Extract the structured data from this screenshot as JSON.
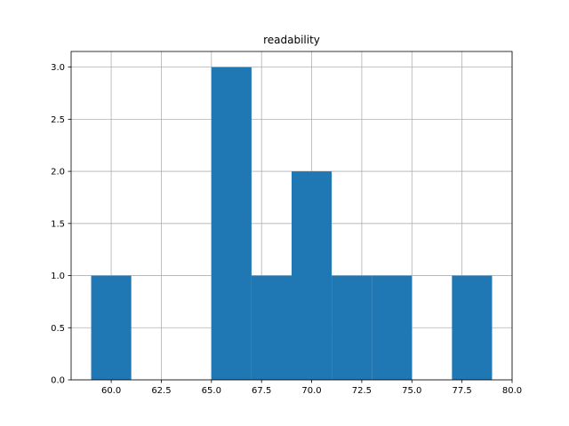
{
  "chart_data": {
    "type": "bar",
    "title": "readability",
    "xlabel": "",
    "ylabel": "",
    "xlim": [
      58.0,
      80.0
    ],
    "ylim": [
      0.0,
      3.15
    ],
    "grid": true,
    "bar_color": "#1f77b4",
    "bins": [
      {
        "x0": 59,
        "x1": 61,
        "count": 1
      },
      {
        "x0": 61,
        "x1": 63,
        "count": 0
      },
      {
        "x0": 63,
        "x1": 65,
        "count": 0
      },
      {
        "x0": 65,
        "x1": 67,
        "count": 3
      },
      {
        "x0": 67,
        "x1": 69,
        "count": 1
      },
      {
        "x0": 69,
        "x1": 71,
        "count": 2
      },
      {
        "x0": 71,
        "x1": 73,
        "count": 1
      },
      {
        "x0": 73,
        "x1": 75,
        "count": 1
      },
      {
        "x0": 75,
        "x1": 77,
        "count": 0
      },
      {
        "x0": 77,
        "x1": 79,
        "count": 1
      }
    ],
    "xticks": [
      60.0,
      62.5,
      65.0,
      67.5,
      70.0,
      72.5,
      75.0,
      77.5,
      80.0
    ],
    "xtick_labels": [
      "60.0",
      "62.5",
      "65.0",
      "67.5",
      "70.0",
      "72.5",
      "75.0",
      "77.5",
      "80.0"
    ],
    "yticks": [
      0.0,
      0.5,
      1.0,
      1.5,
      2.0,
      2.5,
      3.0
    ],
    "ytick_labels": [
      "0.0",
      "0.5",
      "1.0",
      "1.5",
      "2.0",
      "2.5",
      "3.0"
    ]
  }
}
